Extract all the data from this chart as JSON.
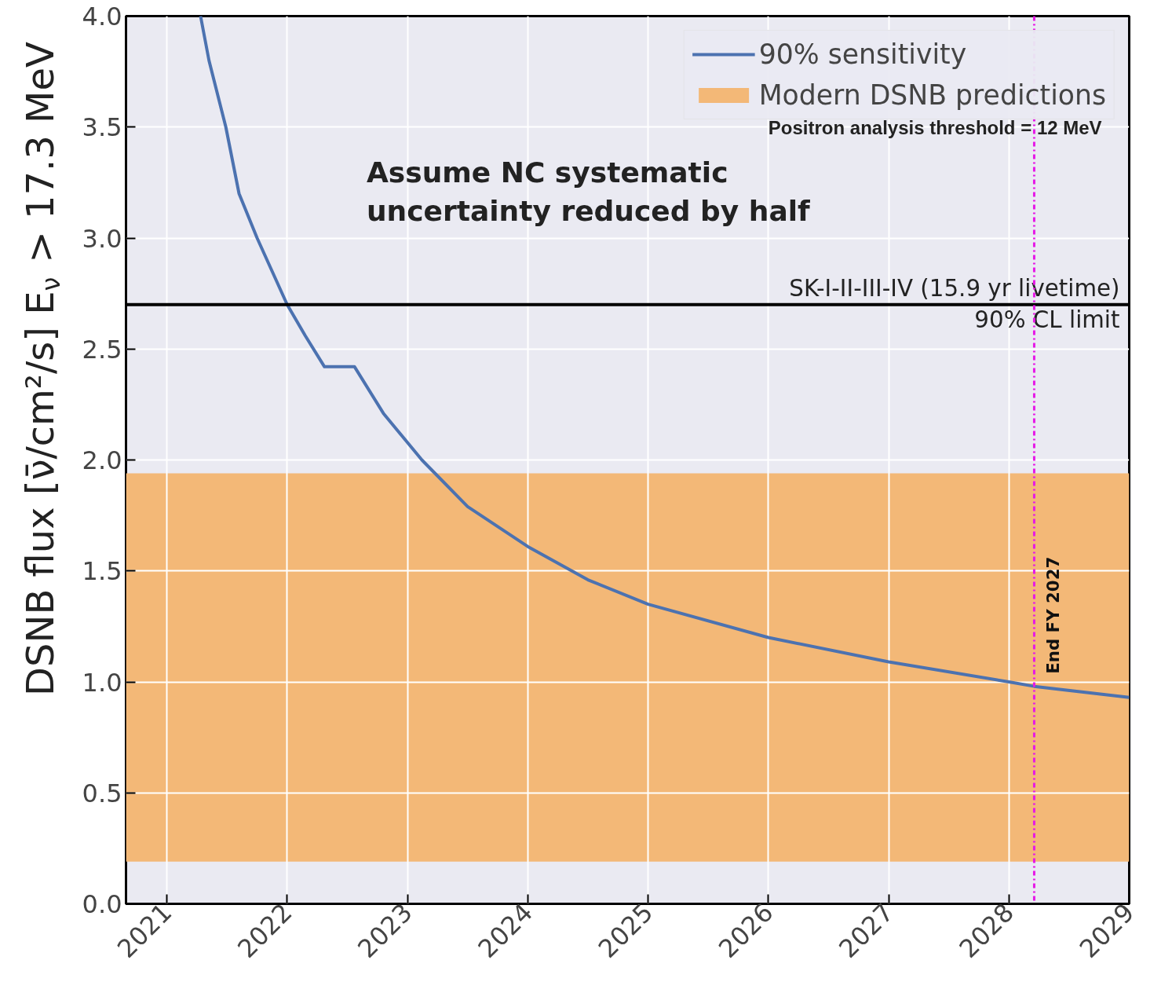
{
  "chart_data": {
    "type": "line",
    "ylabel": "DSNB flux [ν̄/cm²/s] E$_{ν}$ > 17.3 MeV",
    "x": [
      2021.28,
      2021.35,
      2021.49,
      2021.6,
      2021.75,
      2022.0,
      2022.15,
      2022.31,
      2022.56,
      2022.8,
      2023.12,
      2023.5,
      2024.0,
      2024.5,
      2025.0,
      2026.0,
      2027.0,
      2028.0,
      2028.21,
      2029.0
    ],
    "series": [
      {
        "name": "90% sensitivity",
        "color": "#4c72b0",
        "values": [
          4.0,
          3.8,
          3.5,
          3.2,
          3.0,
          2.7,
          2.56,
          2.42,
          2.42,
          2.21,
          2.0,
          1.79,
          1.61,
          1.46,
          1.35,
          1.2,
          1.09,
          1.0,
          0.98,
          0.93
        ]
      }
    ],
    "bands": [
      {
        "axis": "y",
        "from": 0.19,
        "to": 1.94,
        "label": "Modern DSNB predictions",
        "color": "#f3b877"
      }
    ],
    "ref_lines": [
      {
        "axis": "y",
        "value": 2.7,
        "label": "SK-I-II-III-IV (15.9 yr livetime)\n90% CL limit",
        "color": "#000000",
        "line_style": "solid"
      },
      {
        "axis": "x",
        "value": 2028.21,
        "label": "End FY 2027",
        "color": "#e619e6",
        "line_style": "dashdot"
      }
    ],
    "annotations": [
      "Positron analysis threshold = 12 MeV",
      "Assume NC systematic\nuncertainty reduced by half"
    ],
    "xlim": [
      2020.66,
      2029.0
    ],
    "ylim": [
      0.0,
      4.0
    ],
    "xticks": [
      2021,
      2022,
      2023,
      2024,
      2025,
      2026,
      2027,
      2028,
      2029
    ],
    "yticks": [
      {
        "value": 0,
        "label": "0.0"
      },
      {
        "value": 0.5,
        "label": "0.5"
      },
      {
        "value": 1,
        "label": "1.0"
      },
      {
        "value": 1.5,
        "label": "1.5"
      },
      {
        "value": 2,
        "label": "2.0"
      },
      {
        "value": 2.5,
        "label": "2.5"
      },
      {
        "value": 3,
        "label": "3.0"
      },
      {
        "value": 3.5,
        "label": "3.5"
      },
      {
        "value": 4,
        "label": "4.0"
      }
    ],
    "grid": true,
    "legend": "top right",
    "line_style": "solid",
    "marker": "none"
  }
}
